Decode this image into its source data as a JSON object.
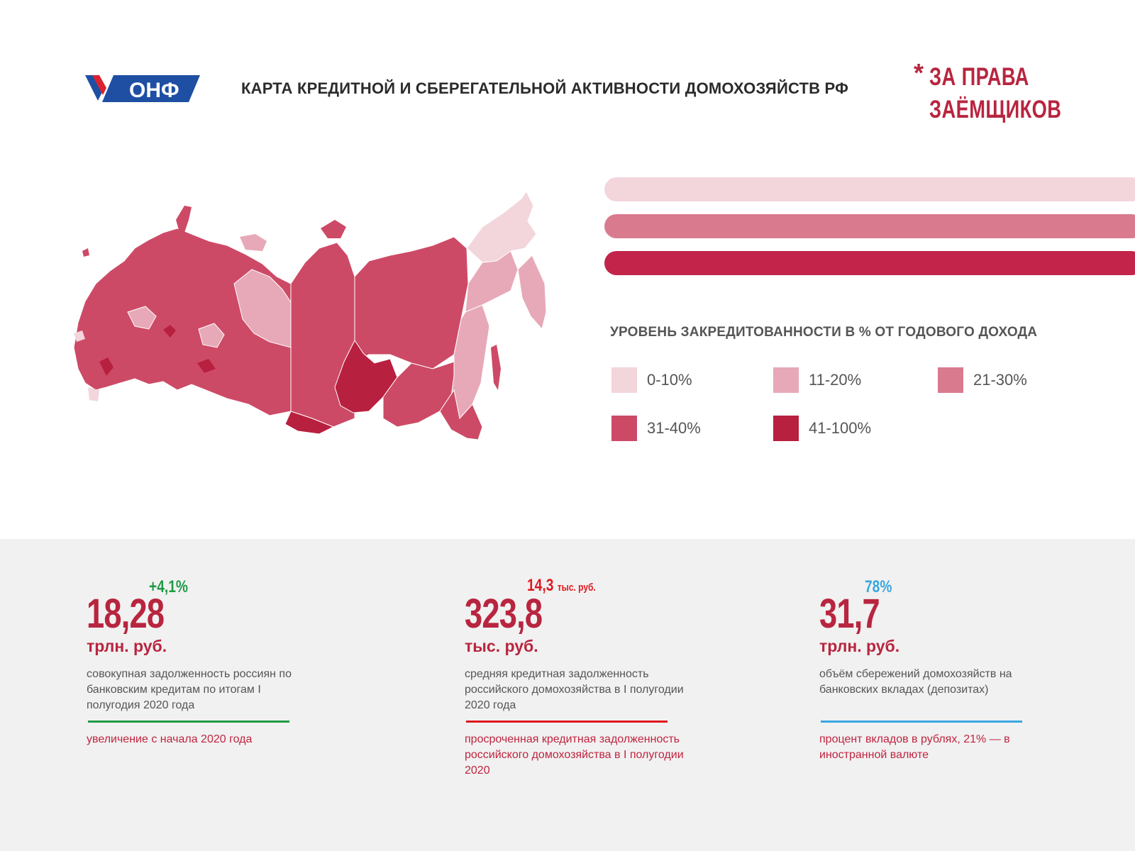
{
  "header": {
    "logo_text": "ОНФ",
    "title": "КАРТА КРЕДИТНОЙ И СБЕРЕГАТЕЛЬНОЙ АКТИВНОСТИ ДОМОХОЗЯЙСТВ РФ",
    "slogan_star": "*",
    "slogan_line1": "ЗА ПРАВА",
    "slogan_line2": "ЗАЁМЩИКОВ"
  },
  "map": {
    "subject": "Russia regions choropleth",
    "colors": {
      "level_0_10": "#f3d5dc",
      "level_11_20": "#e7a9b7",
      "level_21_30": "#d97a8f",
      "level_31_40": "#cd4a66",
      "level_41_100": "#b8203f"
    }
  },
  "legend": {
    "title": "УРОВЕНЬ ЗАКРЕДИТОВАННОСТИ В % ОТ ГОДОВОГО ДОХОДА",
    "items": [
      {
        "label": "0-10%",
        "color": "#f3d5dc"
      },
      {
        "label": "11-20%",
        "color": "#e7a9b7"
      },
      {
        "label": "21-30%",
        "color": "#d97a8f"
      },
      {
        "label": "31-40%",
        "color": "#cd4a66"
      },
      {
        "label": "41-100%",
        "color": "#b8203f"
      }
    ]
  },
  "stats": [
    {
      "change": "+4,1%",
      "change_color": "#1f9a45",
      "value": "18,28",
      "unit": "трлн. руб.",
      "desc": "совокупная задолженность россиян по банковским кредитам по итогам I полугодия 2020 года",
      "line_color": "#1f9a45",
      "note": "увеличение с начала 2020 года",
      "note_color": "#c0243f"
    },
    {
      "change": "14,3",
      "change_suffix": "тыс. руб.",
      "change_color": "#e0181e",
      "value": "323,8",
      "unit": "тыс. руб.",
      "desc": "средняя кредитная задолженность российского домохозяйства в I полугодии 2020 года",
      "line_color": "#e0181e",
      "note": "просроченная кредитная задолженность российского домохозяйства в I полугодии 2020",
      "note_color": "#c0243f"
    },
    {
      "change": "78%",
      "change_color": "#3aa6e0",
      "value": "31,7",
      "unit": "трлн. руб.",
      "desc": "объём сбережений домохозяйств на банковских вкладах (депозитах)",
      "line_color": "#3aa6e0",
      "note": "процент вкладов в рублях, 21% — в иностранной валюте",
      "note_color": "#c0243f"
    }
  ]
}
